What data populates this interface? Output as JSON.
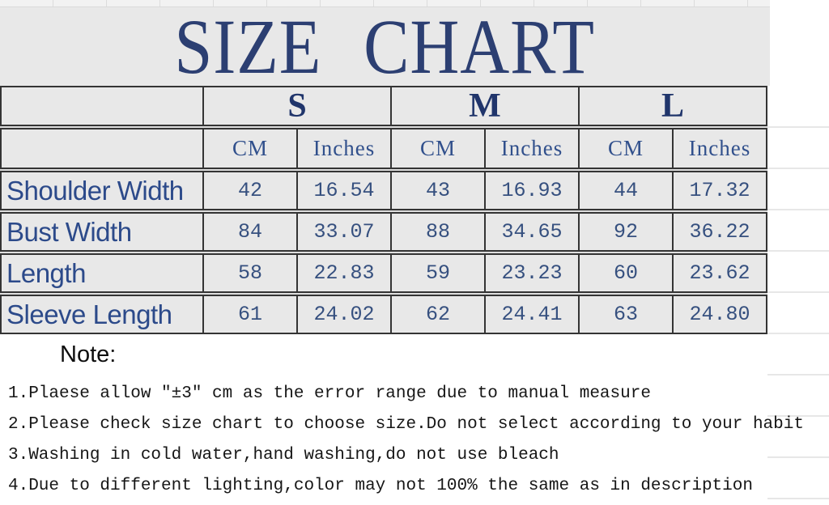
{
  "title": "SIZE CHART",
  "chart_data": {
    "type": "table",
    "title": "SIZE CHART",
    "column_groups": [
      "S",
      "M",
      "L"
    ],
    "sub_columns": [
      "CM",
      "Inches"
    ],
    "row_labels": [
      "Shoulder Width",
      "Bust Width",
      "Length",
      "Sleeve Length"
    ],
    "values": [
      [
        42,
        16.54,
        43,
        16.93,
        44,
        17.32
      ],
      [
        84,
        33.07,
        88,
        34.65,
        92,
        36.22
      ],
      [
        58,
        22.83,
        59,
        23.23,
        60,
        23.62
      ],
      [
        61,
        24.02,
        62,
        24.41,
        63,
        24.8
      ]
    ]
  },
  "table": {
    "sizes": [
      "S",
      "M",
      "L"
    ],
    "units": [
      "CM",
      "Inches"
    ],
    "rows": [
      {
        "label": "Shoulder Width",
        "values": [
          "42",
          "16.54",
          "43",
          "16.93",
          "44",
          "17.32"
        ]
      },
      {
        "label": "Bust Width",
        "values": [
          "84",
          "33.07",
          "88",
          "34.65",
          "92",
          "36.22"
        ]
      },
      {
        "label": "Length",
        "values": [
          "58",
          "22.83",
          "59",
          "23.23",
          "60",
          "23.62"
        ]
      },
      {
        "label": "Sleeve Length",
        "values": [
          "61",
          "24.02",
          "62",
          "24.41",
          "63",
          "24.80"
        ]
      }
    ]
  },
  "notes": {
    "heading": "Note:",
    "items": [
      "1.Plaese allow ″±3″ cm as the error range due to manual measure",
      "2.Please check size chart to choose size.Do not select according to your habit",
      "3.Washing in cold water,hand washing,do not use bleach",
      "4.Due to different lighting,color may not 100% the same as in description"
    ]
  },
  "colors": {
    "title_navy": "#2c3f72",
    "table_text_navy": "#31508c",
    "row_label_navy": "#2c4a8a",
    "cell_background": "#e8e8e8",
    "border_dark": "#343434",
    "note_text": "#161616"
  }
}
